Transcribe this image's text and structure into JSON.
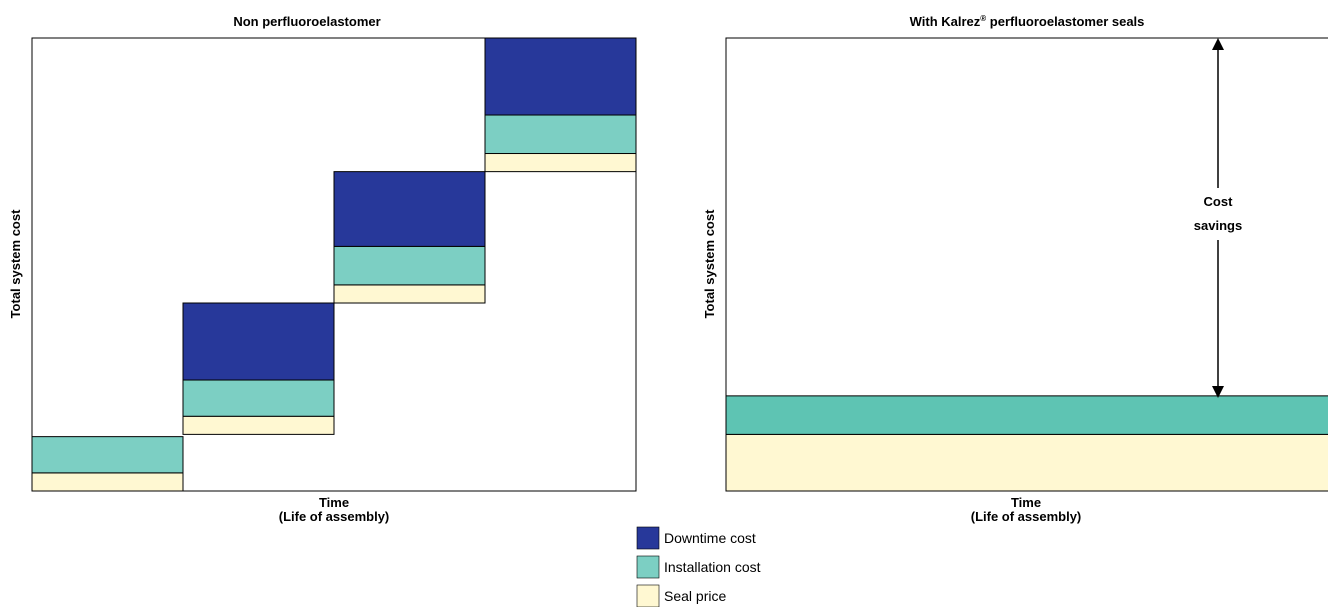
{
  "colors": {
    "downtime": "#27389a",
    "installation": "#7ccfc3",
    "installation_right": "#5ec4b3",
    "seal": "#fff8d2",
    "frame": "#000000"
  },
  "legend": {
    "placement": "bottom-center",
    "items": [
      {
        "key": "downtime",
        "label": "Downtime cost"
      },
      {
        "key": "installation",
        "label": "Installation cost"
      },
      {
        "key": "seal",
        "label": "Seal price"
      }
    ]
  },
  "chart_data": [
    {
      "type": "bar",
      "stacked": true,
      "title": "Non perfluoroelastomer",
      "xlabel_line1": "Time",
      "xlabel_line2": "(Life of assembly)",
      "ylabel": "Total system cost",
      "ylim": [
        0,
        100
      ],
      "grid": false,
      "segments": [
        {
          "x_start": 0,
          "x_end": 1,
          "seal": [
            0,
            4
          ],
          "installation": [
            4,
            12
          ],
          "downtime": null
        },
        {
          "x_start": 1,
          "x_end": 2,
          "seal": [
            12.5,
            16.5
          ],
          "installation": [
            16.5,
            24.5
          ],
          "downtime": [
            24.5,
            41.5
          ]
        },
        {
          "x_start": 2,
          "x_end": 3,
          "seal": [
            41.5,
            45.5
          ],
          "installation": [
            45.5,
            54
          ],
          "downtime": [
            54,
            70.5
          ]
        },
        {
          "x_start": 3,
          "x_end": 4,
          "seal": [
            70.5,
            74.5
          ],
          "installation": [
            74.5,
            83
          ],
          "downtime": [
            83,
            100
          ]
        }
      ]
    },
    {
      "type": "area",
      "title_prefix": "With Kalrez",
      "title_mark": "®",
      "title_suffix": " perfluoroelastomer seals",
      "xlabel_line1": "Time",
      "xlabel_line2": "(Life of assembly)",
      "ylabel": "Total system cost",
      "ylim": [
        0,
        100
      ],
      "grid": false,
      "seal": [
        0,
        12.5
      ],
      "installation": [
        12.5,
        21
      ],
      "annotation_line1": "Cost",
      "annotation_line2": "savings"
    }
  ]
}
